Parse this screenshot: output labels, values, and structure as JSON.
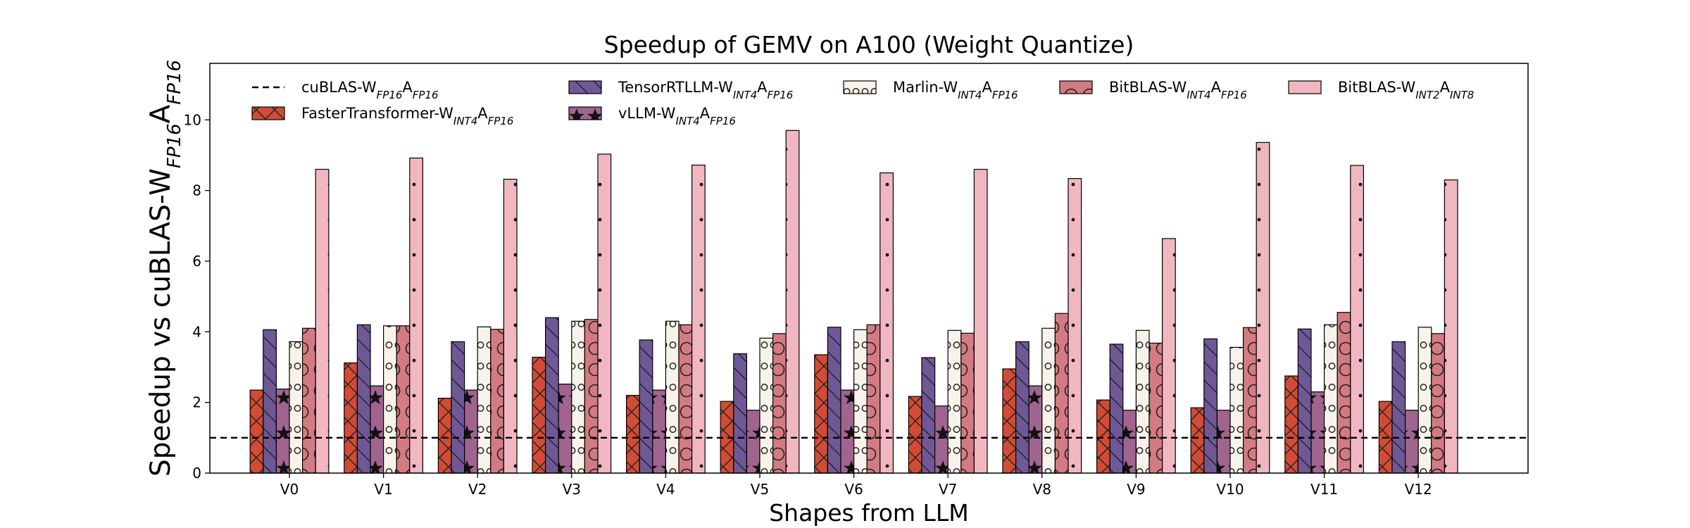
{
  "chart_data": {
    "type": "bar",
    "title": "Speedup of GEMV on A100 (Weight Quantize)",
    "xlabel": "Shapes from LLM",
    "ylabel": {
      "base": "Speedup vs cuBLAS-W",
      "sub1": "FP16",
      "mid": "A",
      "sub2": "FP16"
    },
    "ylim": [
      0,
      11.6
    ],
    "yticks": [
      "0",
      "2",
      "4",
      "6",
      "8",
      "10"
    ],
    "categories": [
      "V0",
      "V1",
      "V2",
      "V3",
      "V4",
      "V5",
      "V6",
      "V7",
      "V8",
      "V9",
      "V10",
      "V11",
      "V12"
    ],
    "baseline": {
      "value": 1.0,
      "label": {
        "base": "cuBLAS-W",
        "sub1": "FP16",
        "mid": "A",
        "sub2": "FP16"
      },
      "style": "dashed"
    },
    "legend_position": "top",
    "series": [
      {
        "name": "FasterTransformer-W_INT4A_FP16",
        "label": {
          "base": "FasterTransformer-W",
          "sub1": "INT4",
          "mid": "A",
          "sub2": "FP16"
        },
        "color": "#d24b35",
        "hatch": "cross",
        "values": [
          2.35,
          3.12,
          2.12,
          3.28,
          2.2,
          2.03,
          3.35,
          2.17,
          2.95,
          2.07,
          1.85,
          2.75,
          2.03
        ]
      },
      {
        "name": "TensorRTLLM-W_INT4A_FP16",
        "label": {
          "base": "TensorRTLLM-W",
          "sub1": "INT4",
          "mid": "A",
          "sub2": "FP16"
        },
        "color": "#6f5896",
        "hatch": "backslash",
        "values": [
          4.06,
          4.2,
          3.72,
          4.4,
          3.77,
          3.38,
          4.13,
          3.27,
          3.72,
          3.65,
          3.8,
          4.08,
          3.72
        ]
      },
      {
        "name": "vLLM-W_INT4A_FP16",
        "label": {
          "base": "vLLM-W",
          "sub1": "INT4",
          "mid": "A",
          "sub2": "FP16"
        },
        "color": "#a0648f",
        "hatch": "star",
        "values": [
          2.38,
          2.47,
          2.35,
          2.52,
          2.35,
          1.78,
          2.35,
          1.9,
          2.47,
          1.78,
          1.78,
          2.3,
          1.78
        ]
      },
      {
        "name": "Marlin-W_INT4A_FP16",
        "label": {
          "base": "Marlin-W",
          "sub1": "INT4",
          "mid": "A",
          "sub2": "FP16"
        },
        "color": "#f7f3ea",
        "hatch": "circle",
        "values": [
          3.72,
          4.17,
          4.14,
          4.3,
          4.3,
          3.82,
          4.06,
          4.04,
          4.1,
          4.04,
          3.56,
          4.2,
          4.13
        ]
      },
      {
        "name": "BitBLAS-W_INT4A_FP16",
        "label": {
          "base": "BitBLAS-W",
          "sub1": "INT4",
          "mid": "A",
          "sub2": "FP16"
        },
        "color": "#d47a83",
        "hatch": "ring",
        "values": [
          4.1,
          4.17,
          4.07,
          4.35,
          4.2,
          3.95,
          4.2,
          3.96,
          4.52,
          3.68,
          4.12,
          4.55,
          3.95
        ]
      },
      {
        "name": "BitBLAS-W_INT2A_INT8",
        "label": {
          "base": "BitBLAS-W",
          "sub1": "INT2",
          "mid": "A",
          "sub2": "INT8"
        },
        "color": "#f1b7c1",
        "hatch": "dot",
        "values": [
          8.6,
          8.92,
          8.32,
          9.03,
          8.72,
          9.7,
          8.5,
          8.6,
          8.34,
          6.64,
          9.36,
          8.71,
          8.3
        ]
      }
    ]
  }
}
